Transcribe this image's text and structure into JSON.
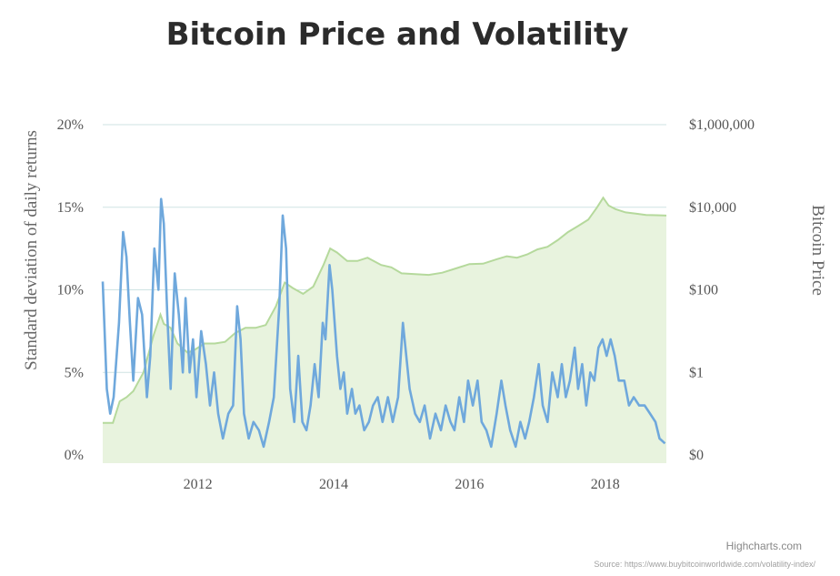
{
  "chart_data": {
    "type": "line",
    "title": "Bitcoin Price and Volatility",
    "left_axis": {
      "label": "Standard deviation of daily returns",
      "range": [
        0,
        20
      ],
      "ticks": [
        0,
        5,
        10,
        15,
        20
      ],
      "tick_labels": [
        "0%",
        "5%",
        "10%",
        "15%",
        "20%"
      ]
    },
    "right_axis": {
      "label": "Bitcoin Price",
      "scale": "log",
      "tick_labels": [
        "$0",
        "$1",
        "$100",
        "$10,000",
        "$1,000,000"
      ]
    },
    "x_axis": {
      "range": [
        2010.6,
        2018.9
      ],
      "ticks": [
        2012,
        2014,
        2016,
        2018
      ],
      "tick_labels": [
        "2012",
        "2014",
        "2016",
        "2018"
      ]
    },
    "grid": true,
    "series": [
      {
        "axis": "right",
        "style": "area",
        "color": "#b5d99c",
        "fill": "#e8f3de",
        "points": [
          [
            2010.6,
            0.06
          ],
          [
            2010.75,
            0.06
          ],
          [
            2010.85,
            0.2
          ],
          [
            2010.95,
            0.25
          ],
          [
            2011.05,
            0.35
          ],
          [
            2011.2,
            1.0
          ],
          [
            2011.35,
            8.0
          ],
          [
            2011.45,
            25
          ],
          [
            2011.5,
            15
          ],
          [
            2011.6,
            12
          ],
          [
            2011.7,
            5
          ],
          [
            2011.85,
            3
          ],
          [
            2011.95,
            3.5
          ],
          [
            2012.1,
            5
          ],
          [
            2012.25,
            5
          ],
          [
            2012.4,
            5.5
          ],
          [
            2012.55,
            9
          ],
          [
            2012.7,
            12
          ],
          [
            2012.85,
            12
          ],
          [
            2013.0,
            14
          ],
          [
            2013.15,
            40
          ],
          [
            2013.28,
            150
          ],
          [
            2013.4,
            110
          ],
          [
            2013.55,
            80
          ],
          [
            2013.7,
            120
          ],
          [
            2013.85,
            400
          ],
          [
            2013.95,
            1000
          ],
          [
            2014.05,
            800
          ],
          [
            2014.2,
            500
          ],
          [
            2014.35,
            500
          ],
          [
            2014.5,
            600
          ],
          [
            2014.7,
            400
          ],
          [
            2014.85,
            350
          ],
          [
            2015.0,
            250
          ],
          [
            2015.2,
            240
          ],
          [
            2015.4,
            230
          ],
          [
            2015.6,
            260
          ],
          [
            2015.8,
            330
          ],
          [
            2016.0,
            420
          ],
          [
            2016.2,
            430
          ],
          [
            2016.4,
            550
          ],
          [
            2016.55,
            650
          ],
          [
            2016.7,
            600
          ],
          [
            2016.85,
            720
          ],
          [
            2017.0,
            950
          ],
          [
            2017.15,
            1100
          ],
          [
            2017.3,
            1600
          ],
          [
            2017.45,
            2500
          ],
          [
            2017.6,
            3500
          ],
          [
            2017.75,
            5000
          ],
          [
            2017.88,
            10000
          ],
          [
            2017.97,
            17000
          ],
          [
            2018.05,
            11000
          ],
          [
            2018.15,
            9000
          ],
          [
            2018.3,
            7500
          ],
          [
            2018.45,
            7000
          ],
          [
            2018.6,
            6500
          ],
          [
            2018.75,
            6400
          ],
          [
            2018.9,
            6300
          ]
        ]
      },
      {
        "axis": "left",
        "style": "line",
        "color": "#6fa8dc",
        "points": [
          [
            2010.6,
            10.5
          ],
          [
            2010.66,
            4.0
          ],
          [
            2010.71,
            2.5
          ],
          [
            2010.76,
            3.5
          ],
          [
            2010.84,
            8.0
          ],
          [
            2010.9,
            13.5
          ],
          [
            2010.95,
            12.0
          ],
          [
            2011.0,
            8.0
          ],
          [
            2011.05,
            4.5
          ],
          [
            2011.12,
            9.5
          ],
          [
            2011.18,
            8.5
          ],
          [
            2011.25,
            3.5
          ],
          [
            2011.3,
            6.0
          ],
          [
            2011.36,
            12.5
          ],
          [
            2011.42,
            10.0
          ],
          [
            2011.46,
            15.5
          ],
          [
            2011.5,
            14.0
          ],
          [
            2011.55,
            8.5
          ],
          [
            2011.6,
            4.0
          ],
          [
            2011.66,
            11.0
          ],
          [
            2011.72,
            8.5
          ],
          [
            2011.78,
            5.0
          ],
          [
            2011.82,
            9.5
          ],
          [
            2011.88,
            5.0
          ],
          [
            2011.93,
            7.0
          ],
          [
            2011.98,
            3.5
          ],
          [
            2012.05,
            7.5
          ],
          [
            2012.12,
            5.5
          ],
          [
            2012.18,
            3.0
          ],
          [
            2012.24,
            5.0
          ],
          [
            2012.3,
            2.5
          ],
          [
            2012.37,
            1.0
          ],
          [
            2012.45,
            2.5
          ],
          [
            2012.52,
            3.0
          ],
          [
            2012.58,
            9.0
          ],
          [
            2012.63,
            7.0
          ],
          [
            2012.68,
            2.5
          ],
          [
            2012.75,
            1.0
          ],
          [
            2012.82,
            2.0
          ],
          [
            2012.9,
            1.5
          ],
          [
            2012.97,
            0.5
          ],
          [
            2013.05,
            2.0
          ],
          [
            2013.12,
            3.5
          ],
          [
            2013.2,
            9.0
          ],
          [
            2013.25,
            14.5
          ],
          [
            2013.3,
            12.5
          ],
          [
            2013.36,
            4.0
          ],
          [
            2013.42,
            2.0
          ],
          [
            2013.48,
            6.0
          ],
          [
            2013.54,
            2.0
          ],
          [
            2013.6,
            1.5
          ],
          [
            2013.66,
            3.0
          ],
          [
            2013.72,
            5.5
          ],
          [
            2013.78,
            3.5
          ],
          [
            2013.84,
            8.0
          ],
          [
            2013.88,
            7.0
          ],
          [
            2013.94,
            11.5
          ],
          [
            2013.98,
            10.0
          ],
          [
            2014.05,
            6.0
          ],
          [
            2014.1,
            4.0
          ],
          [
            2014.15,
            5.0
          ],
          [
            2014.2,
            2.5
          ],
          [
            2014.27,
            4.0
          ],
          [
            2014.32,
            2.5
          ],
          [
            2014.38,
            3.0
          ],
          [
            2014.45,
            1.5
          ],
          [
            2014.52,
            2.0
          ],
          [
            2014.58,
            3.0
          ],
          [
            2014.65,
            3.5
          ],
          [
            2014.72,
            2.0
          ],
          [
            2014.8,
            3.5
          ],
          [
            2014.87,
            2.0
          ],
          [
            2014.95,
            3.5
          ],
          [
            2015.02,
            8.0
          ],
          [
            2015.07,
            6.0
          ],
          [
            2015.12,
            4.0
          ],
          [
            2015.2,
            2.5
          ],
          [
            2015.27,
            2.0
          ],
          [
            2015.34,
            3.0
          ],
          [
            2015.42,
            1.0
          ],
          [
            2015.5,
            2.5
          ],
          [
            2015.58,
            1.5
          ],
          [
            2015.65,
            3.0
          ],
          [
            2015.72,
            2.0
          ],
          [
            2015.78,
            1.5
          ],
          [
            2015.85,
            3.5
          ],
          [
            2015.92,
            2.0
          ],
          [
            2015.98,
            4.5
          ],
          [
            2016.05,
            3.0
          ],
          [
            2016.12,
            4.5
          ],
          [
            2016.18,
            2.0
          ],
          [
            2016.25,
            1.5
          ],
          [
            2016.32,
            0.5
          ],
          [
            2016.4,
            2.5
          ],
          [
            2016.47,
            4.5
          ],
          [
            2016.53,
            3.0
          ],
          [
            2016.6,
            1.5
          ],
          [
            2016.68,
            0.5
          ],
          [
            2016.75,
            2.0
          ],
          [
            2016.82,
            1.0
          ],
          [
            2016.88,
            2.0
          ],
          [
            2016.95,
            3.5
          ],
          [
            2017.02,
            5.5
          ],
          [
            2017.08,
            3.0
          ],
          [
            2017.15,
            2.0
          ],
          [
            2017.22,
            5.0
          ],
          [
            2017.3,
            3.5
          ],
          [
            2017.36,
            5.5
          ],
          [
            2017.42,
            3.5
          ],
          [
            2017.48,
            4.5
          ],
          [
            2017.55,
            6.5
          ],
          [
            2017.6,
            4.0
          ],
          [
            2017.66,
            5.5
          ],
          [
            2017.72,
            3.0
          ],
          [
            2017.78,
            5.0
          ],
          [
            2017.84,
            4.5
          ],
          [
            2017.9,
            6.5
          ],
          [
            2017.96,
            7.0
          ],
          [
            2018.02,
            6.0
          ],
          [
            2018.08,
            7.0
          ],
          [
            2018.14,
            6.0
          ],
          [
            2018.2,
            4.5
          ],
          [
            2018.28,
            4.5
          ],
          [
            2018.35,
            3.0
          ],
          [
            2018.42,
            3.5
          ],
          [
            2018.5,
            3.0
          ],
          [
            2018.58,
            3.0
          ],
          [
            2018.66,
            2.5
          ],
          [
            2018.74,
            2.0
          ],
          [
            2018.8,
            1.0
          ],
          [
            2018.88,
            0.7
          ]
        ]
      }
    ],
    "credit": "Highcharts.com",
    "source": "Source: https://www.buybitcoinworldwide.com/volatility-index/"
  }
}
